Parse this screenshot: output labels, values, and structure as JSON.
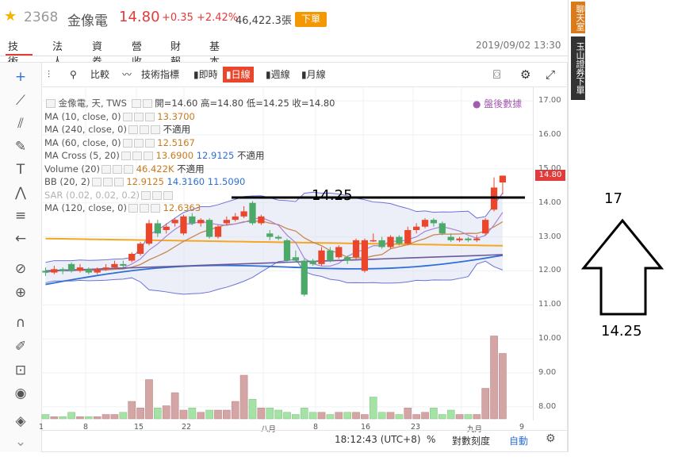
{
  "header": {
    "code": "2368",
    "name": "金像電",
    "price": "14.80",
    "change": "+0.35 +2.42%",
    "volume": "46,422.3張",
    "order_button": "下單",
    "datetime": "2019/09/02 13:30"
  },
  "tabs": [
    "技術",
    "法人",
    "資券",
    "營收",
    "財報",
    "基本"
  ],
  "side_strip": {
    "item1": "聊天室",
    "item2": "玉山證券下單"
  },
  "toolbar": {
    "compare": "比較",
    "indicators": "技術指標",
    "intraday": "即時",
    "daily": "日線",
    "weekly": "週線",
    "monthly": "月線"
  },
  "legend": {
    "title": "金像電, 天, TWS",
    "ohlc": "開=14.60 高=14.80 低=14.25 收=14.80",
    "after_hours": "盤後數據",
    "rows": [
      {
        "label": "MA (10, close, 0)",
        "v1": "13.3700",
        "v2": "",
        "v3": "",
        "na": ""
      },
      {
        "label": "MA (240, close, 0)",
        "v1": "",
        "v2": "",
        "v3": "",
        "na": "不適用"
      },
      {
        "label": "MA (60, close, 0)",
        "v1": "12.5167",
        "v2": "",
        "v3": "",
        "na": ""
      },
      {
        "label": "MA Cross (5, 20)",
        "v1": "13.6900",
        "v2": "12.9125",
        "v3": "",
        "na": "不適用"
      },
      {
        "label": "Volume (20)",
        "v1": "46.422K",
        "v2": "",
        "v3": "",
        "na": "不適用"
      },
      {
        "label": "BB (20, 2)",
        "v1": "12.9125",
        "v2": "14.3160",
        "v3": "11.5090",
        "na": ""
      },
      {
        "label": "SAR (0.02, 0.02, 0.2)",
        "v1": "",
        "v2": "",
        "v3": "",
        "na": ""
      },
      {
        "label": "MA (120, close, 0)",
        "v1": "12.6363",
        "v2": "",
        "v3": "",
        "na": ""
      }
    ]
  },
  "y_axis": {
    "ticks": [
      "17.00",
      "16.00",
      "15.00",
      "14.00",
      "13.00",
      "12.00",
      "11.00",
      "10.00",
      "9.00",
      "8.00"
    ],
    "last_price_tag": "14.80"
  },
  "x_axis": {
    "ticks": [
      "1",
      "8",
      "15",
      "22",
      "八月",
      "8",
      "16",
      "23",
      "九月",
      "9"
    ]
  },
  "bottom_bar": {
    "time": "18:12:43 (UTC+8)",
    "percent": "%",
    "log": "對數刻度",
    "auto": "自動"
  },
  "annotations": {
    "line_label": "14.25",
    "arrow_top": "17",
    "arrow_bottom": "14.25"
  },
  "colors": {
    "up": "#e9462b",
    "down": "#4ca96a",
    "bb_fill": "#dde1f2",
    "ma_orange": "#f5a623",
    "ma_blue": "#2f6fd6",
    "ma_purple": "#6a5a9c"
  },
  "chart_data": {
    "type": "candlestick",
    "ylim": [
      7.6,
      17.4
    ],
    "last_close": 14.8,
    "candles": [
      [
        12.0,
        11.95,
        12.1,
        11.85
      ],
      [
        11.95,
        12.05,
        12.15,
        11.9
      ],
      [
        12.05,
        12.0,
        12.1,
        11.9
      ],
      [
        12.2,
        12.0,
        12.25,
        11.95
      ],
      [
        12.0,
        12.1,
        12.2,
        11.95
      ],
      [
        12.05,
        11.95,
        12.1,
        11.9
      ],
      [
        11.95,
        12.05,
        12.1,
        11.9
      ],
      [
        12.05,
        12.1,
        12.2,
        12.0
      ],
      [
        12.1,
        12.2,
        12.3,
        12.05
      ],
      [
        12.2,
        12.15,
        12.3,
        12.1
      ],
      [
        12.3,
        12.5,
        12.55,
        12.25
      ],
      [
        12.5,
        12.8,
        12.85,
        12.45
      ],
      [
        12.8,
        13.4,
        13.5,
        12.75
      ],
      [
        13.4,
        13.1,
        13.5,
        13.0
      ],
      [
        13.2,
        13.3,
        13.4,
        13.1
      ],
      [
        13.4,
        13.5,
        13.55,
        13.3
      ],
      [
        13.1,
        13.6,
        13.65,
        13.05
      ],
      [
        13.6,
        13.4,
        13.7,
        13.35
      ],
      [
        13.4,
        13.5,
        13.55,
        13.3
      ],
      [
        13.5,
        13.0,
        13.55,
        12.95
      ],
      [
        13.0,
        13.3,
        13.35,
        12.95
      ],
      [
        13.4,
        13.5,
        13.6,
        13.35
      ],
      [
        13.5,
        13.6,
        13.7,
        13.45
      ],
      [
        13.6,
        13.75,
        13.9,
        13.55
      ],
      [
        14.0,
        13.4,
        14.05,
        13.35
      ],
      [
        13.4,
        13.6,
        13.65,
        13.35
      ],
      [
        13.1,
        13.0,
        13.2,
        12.9
      ],
      [
        13.0,
        12.95,
        13.05,
        12.9
      ],
      [
        12.9,
        12.3,
        12.95,
        12.25
      ],
      [
        12.4,
        12.3,
        12.6,
        12.25
      ],
      [
        12.3,
        11.3,
        12.35,
        11.25
      ],
      [
        12.3,
        12.2,
        12.35,
        12.15
      ],
      [
        12.2,
        12.6,
        12.7,
        12.15
      ],
      [
        12.6,
        12.3,
        12.7,
        12.25
      ],
      [
        12.4,
        12.7,
        12.75,
        12.35
      ],
      [
        12.4,
        12.3,
        12.45,
        12.2
      ],
      [
        12.4,
        12.9,
        12.95,
        12.35
      ],
      [
        12.0,
        12.9,
        12.95,
        11.95
      ],
      [
        12.9,
        12.9,
        13.1,
        12.85
      ],
      [
        12.9,
        12.7,
        13.0,
        12.65
      ],
      [
        12.7,
        13.0,
        13.05,
        12.65
      ],
      [
        13.0,
        12.8,
        13.05,
        12.75
      ],
      [
        12.8,
        13.2,
        13.3,
        12.75
      ],
      [
        13.2,
        13.3,
        13.4,
        13.1
      ],
      [
        13.3,
        13.5,
        13.55,
        13.25
      ],
      [
        13.5,
        13.4,
        13.55,
        13.3
      ],
      [
        13.4,
        13.1,
        13.45,
        13.05
      ],
      [
        13.0,
        12.9,
        13.1,
        12.85
      ],
      [
        12.9,
        12.95,
        13.0,
        12.85
      ],
      [
        12.95,
        12.9,
        13.0,
        12.85
      ],
      [
        12.9,
        12.95,
        13.05,
        12.85
      ],
      [
        13.1,
        13.5,
        13.55,
        13.05
      ],
      [
        13.8,
        14.45,
        14.75,
        13.75
      ],
      [
        14.6,
        14.8,
        14.8,
        14.25
      ]
    ],
    "volume": [
      2,
      1,
      1,
      3,
      1,
      1,
      1,
      2,
      2,
      3,
      8,
      5,
      18,
      5,
      6,
      12,
      4,
      5,
      3,
      4,
      4,
      4,
      8,
      20,
      9,
      5,
      5,
      4,
      3,
      2,
      5,
      3,
      3,
      2,
      3,
      3,
      3,
      2,
      10,
      3,
      3,
      2,
      5,
      2,
      3,
      5,
      2,
      4,
      2,
      2,
      2,
      14,
      38,
      30
    ],
    "volume_up": [
      false,
      true,
      false,
      false,
      true,
      false,
      true,
      true,
      true,
      false,
      true,
      true,
      true,
      false,
      true,
      true,
      true,
      false,
      true,
      false,
      true,
      true,
      true,
      true,
      false,
      true,
      false,
      false,
      false,
      false,
      false,
      false,
      true,
      false,
      true,
      false,
      true,
      true,
      false,
      false,
      true,
      false,
      true,
      true,
      true,
      false,
      false,
      false,
      true,
      false,
      true,
      true,
      true,
      true
    ]
  }
}
